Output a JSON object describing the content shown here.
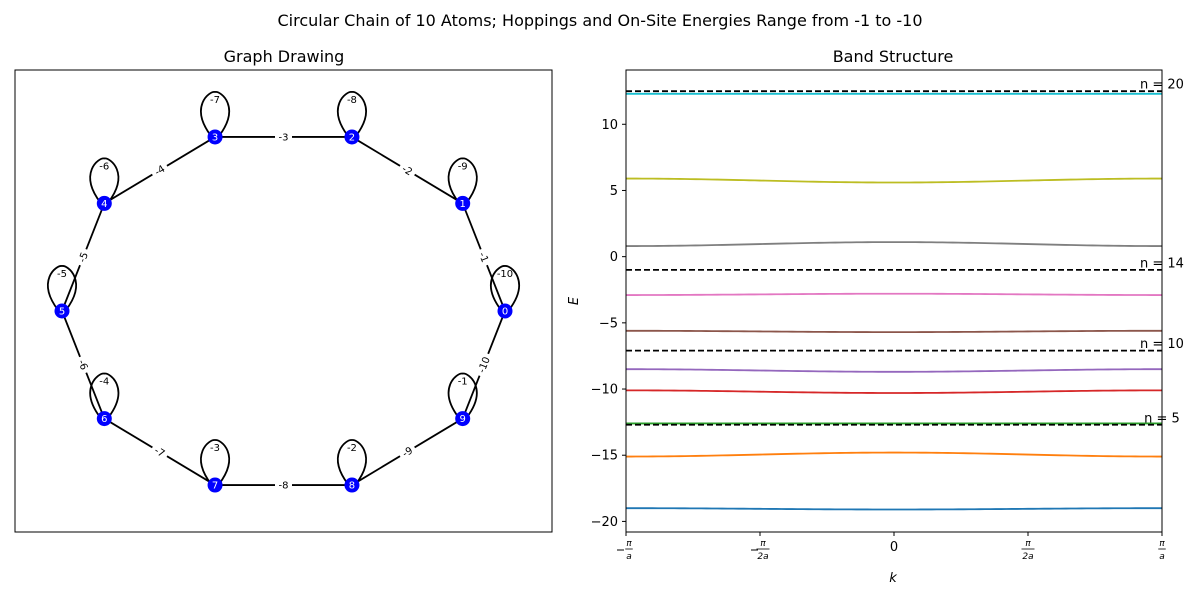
{
  "figure": {
    "suptitle": "Circular Chain of 10 Atoms; Hoppings and On-Site Energies Range from -1 to -10"
  },
  "chart_data": [
    {
      "type": "graph",
      "title": "Graph Drawing",
      "node_color": "#0000ff",
      "edge_color": "#000000",
      "nodes": [
        {
          "id": "0",
          "onsite": "-10"
        },
        {
          "id": "1",
          "onsite": "-9"
        },
        {
          "id": "2",
          "onsite": "-8"
        },
        {
          "id": "3",
          "onsite": "-7"
        },
        {
          "id": "4",
          "onsite": "-6"
        },
        {
          "id": "5",
          "onsite": "-5"
        },
        {
          "id": "6",
          "onsite": "-4"
        },
        {
          "id": "7",
          "onsite": "-3"
        },
        {
          "id": "8",
          "onsite": "-2"
        },
        {
          "id": "9",
          "onsite": "-1"
        }
      ],
      "edges": [
        {
          "from": 0,
          "to": 1,
          "label": "-1"
        },
        {
          "from": 1,
          "to": 2,
          "label": "-2"
        },
        {
          "from": 2,
          "to": 3,
          "label": "-3"
        },
        {
          "from": 3,
          "to": 4,
          "label": "-4"
        },
        {
          "from": 4,
          "to": 5,
          "label": "-5"
        },
        {
          "from": 5,
          "to": 6,
          "label": "-6"
        },
        {
          "from": 6,
          "to": 7,
          "label": "-7"
        },
        {
          "from": 7,
          "to": 8,
          "label": "-8"
        },
        {
          "from": 8,
          "to": 9,
          "label": "-9"
        },
        {
          "from": 9,
          "to": 0,
          "label": "-10"
        }
      ]
    },
    {
      "type": "line",
      "title": "Band Structure",
      "xlabel": "k",
      "ylabel": "E",
      "xlim": [
        -3.14159,
        3.14159
      ],
      "ylim": [
        -20.8,
        14.1
      ],
      "xticks": [
        {
          "value": -3.14159,
          "num": "π",
          "den": "a",
          "neg": true
        },
        {
          "value": -1.5708,
          "num": "π",
          "den": "2a",
          "neg": true
        },
        {
          "value": 0,
          "plain": "0"
        },
        {
          "value": 1.5708,
          "num": "π",
          "den": "2a",
          "neg": false
        },
        {
          "value": 3.14159,
          "num": "π",
          "den": "a",
          "neg": false
        }
      ],
      "yticks": [
        -20,
        -15,
        -10,
        -5,
        0,
        5,
        10
      ],
      "series": [
        {
          "color": "#1f77b4",
          "edge": -19.0,
          "center": -19.1
        },
        {
          "color": "#ff7f0e",
          "edge": -15.1,
          "center": -14.8
        },
        {
          "color": "#2ca02c",
          "edge": -12.6,
          "center": -12.6
        },
        {
          "color": "#d62728",
          "edge": -10.1,
          "center": -10.3
        },
        {
          "color": "#9467bd",
          "edge": -8.5,
          "center": -8.7
        },
        {
          "color": "#8c564b",
          "edge": -5.6,
          "center": -5.7
        },
        {
          "color": "#e377c2",
          "edge": -2.9,
          "center": -2.8
        },
        {
          "color": "#7f7f7f",
          "edge": 0.8,
          "center": 1.1
        },
        {
          "color": "#bcbd22",
          "edge": 5.9,
          "center": 5.6
        },
        {
          "color": "#17becf",
          "edge": 12.3,
          "center": 12.3
        }
      ],
      "hlines": [
        {
          "y": 12.5,
          "label": "n = 20"
        },
        {
          "y": -1.0,
          "label": "n = 14"
        },
        {
          "y": -7.1,
          "label": "n = 10"
        },
        {
          "y": -12.7,
          "label": "n = 5"
        }
      ]
    }
  ]
}
